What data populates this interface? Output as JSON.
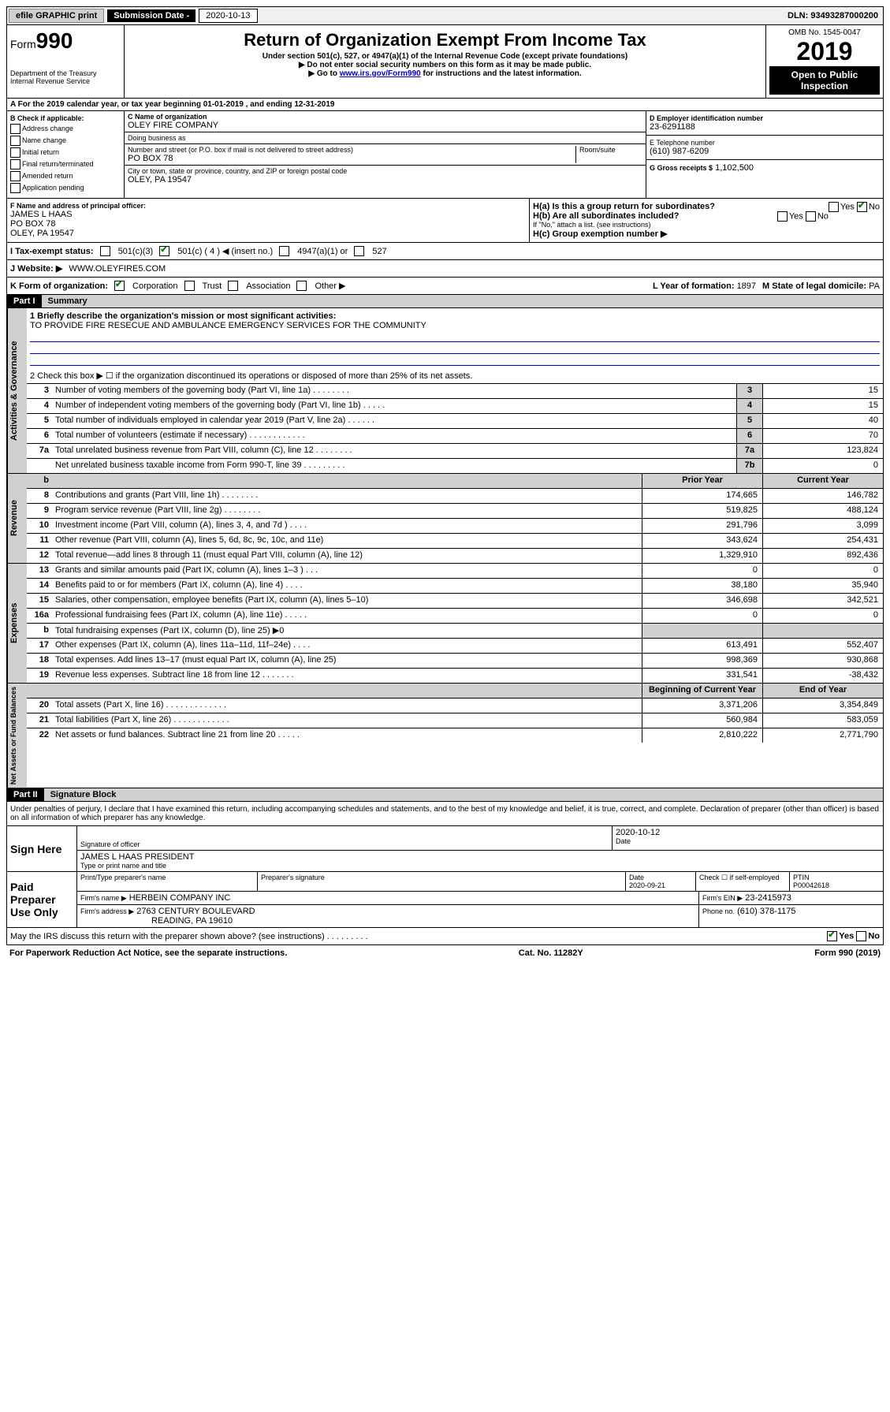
{
  "top": {
    "efile": "efile GRAPHIC print",
    "sub_label": "Submission Date - ",
    "sub_date": "2020-10-13",
    "dln": "DLN: 93493287000200"
  },
  "header": {
    "form": "Form",
    "number": "990",
    "dept": "Department of the Treasury\nInternal Revenue Service",
    "title": "Return of Organization Exempt From Income Tax",
    "subtitle": "Under section 501(c), 527, or 4947(a)(1) of the Internal Revenue Code (except private foundations)",
    "note1": "▶ Do not enter social security numbers on this form as it may be made public.",
    "note2_pre": "▶ Go to ",
    "note2_link": "www.irs.gov/Form990",
    "note2_post": " for instructions and the latest information.",
    "omb": "OMB No. 1545-0047",
    "year": "2019",
    "open_public": "Open to Public Inspection"
  },
  "periodA": "A For the 2019 calendar year, or tax year beginning 01-01-2019    , and ending 12-31-2019",
  "B": {
    "label": "B Check if applicable:",
    "opts": [
      "Address change",
      "Name change",
      "Initial return",
      "Final return/terminated",
      "Amended return",
      "Application pending"
    ]
  },
  "C": {
    "name_label": "C Name of organization",
    "name": "OLEY FIRE COMPANY",
    "dba_label": "Doing business as",
    "addr_label": "Number and street (or P.O. box if mail is not delivered to street address)",
    "room_label": "Room/suite",
    "addr": "PO BOX 78",
    "city_label": "City or town, state or province, country, and ZIP or foreign postal code",
    "city": "OLEY, PA  19547"
  },
  "D": {
    "label": "D Employer identification number",
    "value": "23-6291188"
  },
  "E": {
    "label": "E Telephone number",
    "value": "(610) 987-6209"
  },
  "G": {
    "label": "G Gross receipts $",
    "value": "1,102,500"
  },
  "F": {
    "label": "F  Name and address of principal officer:",
    "name": "JAMES L HAAS",
    "addr1": "PO BOX 78",
    "addr2": "OLEY, PA  19547"
  },
  "H": {
    "a": "H(a)  Is this a group return for subordinates?",
    "b": "H(b)  Are all subordinates included?",
    "b_note": "If \"No,\" attach a list. (see instructions)",
    "c": "H(c)  Group exemption number ▶",
    "yes": "Yes",
    "no": "No"
  },
  "I": {
    "label": "I   Tax-exempt status:",
    "o1": "501(c)(3)",
    "o2": "501(c) ( 4 ) ◀ (insert no.)",
    "o3": "4947(a)(1) or",
    "o4": "527"
  },
  "J": {
    "label": "J   Website: ▶",
    "value": "WWW.OLEYFIRE5.COM"
  },
  "K": {
    "label": "K Form of organization:",
    "corp": "Corporation",
    "trust": "Trust",
    "assoc": "Association",
    "other": "Other ▶"
  },
  "L": {
    "label": "L Year of formation:",
    "value": "1897"
  },
  "M": {
    "label": "M State of legal domicile:",
    "value": "PA"
  },
  "part1": {
    "header": "Part I",
    "title": "Summary",
    "l1_label": "1   Briefly describe the organization's mission or most significant activities:",
    "l1_text": "TO PROVIDE FIRE RESECUE AND AMBULANCE EMERGENCY SERVICES FOR THE COMMUNITY",
    "l2": "2   Check this box ▶ ☐  if the organization discontinued its operations or disposed of more than 25% of its net assets.",
    "rows_single": [
      {
        "n": "3",
        "d": "Number of voting members of the governing body (Part VI, line 1a)  .   .   .   .   .   .   .   .",
        "b": "3",
        "v": "15"
      },
      {
        "n": "4",
        "d": "Number of independent voting members of the governing body (Part VI, line 1b)  .   .   .   .   .",
        "b": "4",
        "v": "15"
      },
      {
        "n": "5",
        "d": "Total number of individuals employed in calendar year 2019 (Part V, line 2a)  .   .   .   .   .   .",
        "b": "5",
        "v": "40"
      },
      {
        "n": "6",
        "d": "Total number of volunteers (estimate if necessary)  .   .   .   .   .   .   .   .   .   .   .   .",
        "b": "6",
        "v": "70"
      },
      {
        "n": "7a",
        "d": "Total unrelated business revenue from Part VIII, column (C), line 12  .   .   .   .   .   .   .   .",
        "b": "7a",
        "v": "123,824"
      },
      {
        "n": "",
        "d": "Net unrelated business taxable income from Form 990-T, line 39  .   .   .   .   .   .   .   .   .",
        "b": "7b",
        "v": "0"
      }
    ],
    "col_prior": "Prior Year",
    "col_current": "Current Year",
    "revenue": [
      {
        "n": "8",
        "d": "Contributions and grants (Part VIII, line 1h)  .   .   .   .   .   .   .   .",
        "p": "174,665",
        "c": "146,782"
      },
      {
        "n": "9",
        "d": "Program service revenue (Part VIII, line 2g)  .   .   .   .   .   .   .   .",
        "p": "519,825",
        "c": "488,124"
      },
      {
        "n": "10",
        "d": "Investment income (Part VIII, column (A), lines 3, 4, and 7d )  .   .   .   .",
        "p": "291,796",
        "c": "3,099"
      },
      {
        "n": "11",
        "d": "Other revenue (Part VIII, column (A), lines 5, 6d, 8c, 9c, 10c, and 11e)",
        "p": "343,624",
        "c": "254,431"
      },
      {
        "n": "12",
        "d": "Total revenue—add lines 8 through 11 (must equal Part VIII, column (A), line 12)",
        "p": "1,329,910",
        "c": "892,436"
      }
    ],
    "expenses": [
      {
        "n": "13",
        "d": "Grants and similar amounts paid (Part IX, column (A), lines 1–3 )  .   .   .",
        "p": "0",
        "c": "0"
      },
      {
        "n": "14",
        "d": "Benefits paid to or for members (Part IX, column (A), line 4)  .   .   .   .",
        "p": "38,180",
        "c": "35,940"
      },
      {
        "n": "15",
        "d": "Salaries, other compensation, employee benefits (Part IX, column (A), lines 5–10)",
        "p": "346,698",
        "c": "342,521"
      },
      {
        "n": "16a",
        "d": "Professional fundraising fees (Part IX, column (A), line 11e)  .   .   .   .   .",
        "p": "0",
        "c": "0"
      },
      {
        "n": "b",
        "d": "Total fundraising expenses (Part IX, column (D), line 25) ▶0",
        "p": "",
        "c": "",
        "shade": true
      },
      {
        "n": "17",
        "d": "Other expenses (Part IX, column (A), lines 11a–11d, 11f–24e)  .   .   .   .",
        "p": "613,491",
        "c": "552,407"
      },
      {
        "n": "18",
        "d": "Total expenses. Add lines 13–17 (must equal Part IX, column (A), line 25)",
        "p": "998,369",
        "c": "930,868"
      },
      {
        "n": "19",
        "d": "Revenue less expenses. Subtract line 18 from line 12  .   .   .   .   .   .   .",
        "p": "331,541",
        "c": "-38,432"
      }
    ],
    "col_begin": "Beginning of Current Year",
    "col_end": "End of Year",
    "netassets": [
      {
        "n": "20",
        "d": "Total assets (Part X, line 16)  .   .   .   .   .   .   .   .   .   .   .   .   .",
        "p": "3,371,206",
        "c": "3,354,849"
      },
      {
        "n": "21",
        "d": "Total liabilities (Part X, line 26)  .   .   .   .   .   .   .   .   .   .   .   .",
        "p": "560,984",
        "c": "583,059"
      },
      {
        "n": "22",
        "d": "Net assets or fund balances. Subtract line 21 from line 20  .   .   .   .   .",
        "p": "2,810,222",
        "c": "2,771,790"
      }
    ],
    "sect_gov": "Activities & Governance",
    "sect_rev": "Revenue",
    "sect_exp": "Expenses",
    "sect_net": "Net Assets or Fund Balances"
  },
  "part2": {
    "header": "Part II",
    "title": "Signature Block",
    "perjury": "Under penalties of perjury, I declare that I have examined this return, including accompanying schedules and statements, and to the best of my knowledge and belief, it is true, correct, and complete. Declaration of preparer (other than officer) is based on all information of which preparer has any knowledge.",
    "sign_here": "Sign Here",
    "sig_officer": "Signature of officer",
    "sig_date": "2020-10-12",
    "date_label": "Date",
    "officer_name": "JAMES L HAAS  PRESIDENT",
    "type_name": "Type or print name and title",
    "paid": "Paid Preparer Use Only",
    "prep_name_label": "Print/Type preparer's name",
    "prep_sig_label": "Preparer's signature",
    "prep_date_label": "Date",
    "prep_date": "2020-09-21",
    "check_self": "Check ☐ if self-employed",
    "ptin_label": "PTIN",
    "ptin": "P00042618",
    "firm_name_label": "Firm's name    ▶",
    "firm_name": "HERBEIN COMPANY INC",
    "firm_ein_label": "Firm's EIN ▶",
    "firm_ein": "23-2415973",
    "firm_addr_label": "Firm's address ▶",
    "firm_addr1": "2763 CENTURY BOULEVARD",
    "firm_addr2": "READING, PA  19610",
    "phone_label": "Phone no.",
    "phone": "(610) 378-1175",
    "discuss": "May the IRS discuss this return with the preparer shown above? (see instructions)   .   .   .   .   .   .   .   .   .",
    "yes": "Yes",
    "no": "No"
  },
  "footer": {
    "paperwork": "For Paperwork Reduction Act Notice, see the separate instructions.",
    "cat": "Cat. No. 11282Y",
    "form": "Form 990 (2019)"
  }
}
